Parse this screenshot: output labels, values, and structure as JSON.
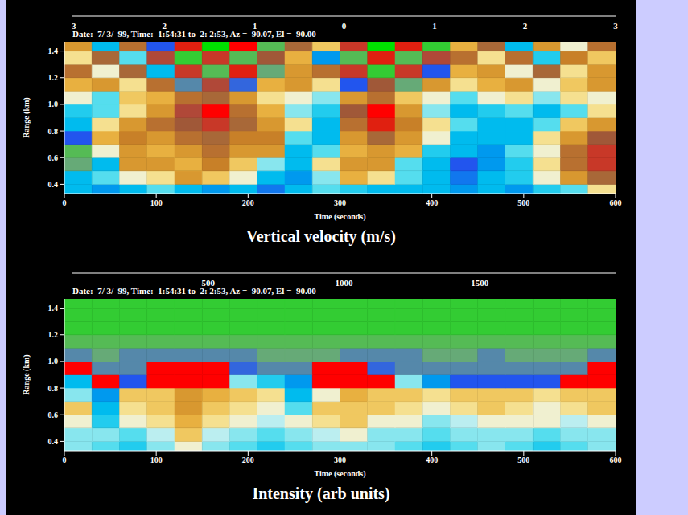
{
  "chart_data": [
    {
      "type": "heatmap",
      "title": "Vertical velocity (m/s)",
      "header": "Date:  7/ 3/  99, Time:  1:54:31 to  2: 2:53, Az =  90.07, El =  90.00",
      "x_label": "Time (seconds)",
      "y_label": "Range (km)",
      "xlim": [
        0,
        600
      ],
      "xticks": [
        0,
        100,
        200,
        300,
        400,
        500,
        600
      ],
      "ylim": [
        0.33,
        1.47
      ],
      "yticks": [
        0.4,
        0.6,
        0.8,
        {
          "value": 1,
          "label": "1.0"
        },
        1.2,
        1.4
      ],
      "x": [
        0,
        30,
        60,
        90,
        120,
        150,
        180,
        210,
        240,
        270,
        300,
        330,
        360,
        390,
        420,
        450,
        480,
        510,
        540,
        570
      ],
      "y": [
        0.3,
        0.4,
        0.5,
        0.6,
        0.7,
        0.8,
        0.9,
        1.0,
        1.1,
        1.2,
        1.3,
        1.4
      ],
      "cells": [
        [
          -1,
          -1.2,
          -0.8,
          -0.5,
          -1,
          -1.2,
          -1,
          -1.3,
          -0.8,
          -0.5,
          -0.6,
          -1,
          -1,
          -0.8,
          -1.2,
          -1,
          -1.1,
          -0.7,
          -0.5,
          0.5
        ],
        [
          -1,
          -0.5,
          0.3,
          0.5,
          1.0,
          0.6,
          0.3,
          -0.8,
          -1.2,
          -0.3,
          0.8,
          0.5,
          -0.5,
          -1.0,
          -1.3,
          -0.8,
          -0.6,
          0.3,
          1.0,
          1.8
        ],
        [
          -2.2,
          -0.8,
          1.0,
          1.2,
          0.8,
          1.4,
          0.6,
          -0.3,
          -1.0,
          0.5,
          1.2,
          1.0,
          -0.4,
          -1.0,
          -1.5,
          -1.2,
          -0.7,
          0.4,
          1.5,
          2.4
        ],
        [
          -2.5,
          0.2,
          1.2,
          0.8,
          1.2,
          1.5,
          1.2,
          1.0,
          -0.8,
          -0.5,
          0.8,
          1.2,
          0.8,
          -0.6,
          -1.0,
          -1.2,
          -0.5,
          0.2,
          1.6,
          2.5
        ],
        [
          -1.5,
          0.8,
          1.4,
          1.2,
          1.5,
          1.8,
          1.4,
          1.3,
          -0.5,
          -1.0,
          1.0,
          1.8,
          1.2,
          0.2,
          -0.8,
          -1.0,
          -0.8,
          0.5,
          1.2,
          2.0
        ],
        [
          -0.8,
          0.5,
          1.0,
          1.5,
          2.0,
          2.5,
          1.8,
          1.2,
          0.4,
          -0.8,
          1.5,
          2.6,
          1.4,
          0.5,
          -0.5,
          -0.8,
          -1.0,
          -0.5,
          0.6,
          1.0
        ],
        [
          -0.6,
          -0.4,
          0.5,
          1.2,
          2.2,
          2.8,
          1.6,
          0.8,
          -0.2,
          -0.6,
          2.0,
          2.8,
          1.2,
          -0.3,
          -0.8,
          -0.6,
          -0.4,
          -0.8,
          -0.5,
          0.4
        ],
        [
          0.3,
          -0.5,
          0.6,
          0.8,
          1.5,
          1.8,
          1.0,
          0.5,
          0.2,
          -0.3,
          1.2,
          1.6,
          0.6,
          0.3,
          -0.5,
          0.2,
          0.4,
          -0.2,
          0.5,
          0.3
        ],
        [
          0.8,
          1.2,
          0.5,
          1.5,
          -2.0,
          2.2,
          -1.8,
          0.8,
          1.0,
          0.5,
          -1.5,
          2.0,
          -2.2,
          1.0,
          0.5,
          0.8,
          1.2,
          0.3,
          0.6,
          1.0
        ],
        [
          1.5,
          0.2,
          1.8,
          -1.0,
          2.5,
          -2.5,
          2.6,
          -2.2,
          1.0,
          1.5,
          2.4,
          -2.6,
          2.5,
          -1.5,
          0.8,
          1.2,
          0.2,
          1.8,
          0.5,
          1.2
        ],
        [
          0.5,
          1.8,
          -0.5,
          2.2,
          -2.6,
          2.4,
          -2.5,
          2.0,
          0.8,
          -1.2,
          -2.4,
          2.6,
          -2.5,
          2.2,
          1.5,
          0.4,
          1.6,
          -0.6,
          1.4,
          0.6
        ],
        [
          1.2,
          -0.8,
          1.5,
          -1.5,
          2.6,
          -2.8,
          2.8,
          -2.4,
          1.8,
          0.6,
          2.5,
          -2.8,
          2.6,
          -2.6,
          0.9,
          1.8,
          -0.8,
          1.2,
          0.2,
          1.5
        ]
      ],
      "colorbar": {
        "range": [
          -3,
          3
        ],
        "ticks": [
          -3,
          -2,
          -1,
          0,
          1,
          2,
          3
        ],
        "colors": [
          "#00e000",
          "#33cc33",
          "#55bb55",
          "#66aa77",
          "#5588aa",
          "#3366dd",
          "#2255ee",
          "#1177ee",
          "#0099ee",
          "#00bbee",
          "#22ccee",
          "#55ddee",
          "#88e6ee",
          "#bbeef0",
          "#f0f0d0",
          "#f5e090",
          "#f0c860",
          "#e8b040",
          "#d89830",
          "#c88028",
          "#b87030",
          "#a86838",
          "#a05838",
          "#b04838",
          "#c83828",
          "#e02010",
          "#ff0000"
        ]
      }
    },
    {
      "type": "heatmap",
      "title": "Intensity (arb units)",
      "header": "Date:  7/ 3/  99, Time:  1:54:31 to  2: 2:53, Az =  90.07, El =  90.00",
      "x_label": "Time (seconds)",
      "y_label": "Range (km)",
      "xlim": [
        0,
        600
      ],
      "xticks": [
        0,
        100,
        200,
        300,
        400,
        500,
        600
      ],
      "ylim": [
        0.33,
        1.47
      ],
      "yticks": [
        0.4,
        0.6,
        0.8,
        {
          "value": 1,
          "label": "1.0"
        },
        1.2,
        1.4
      ],
      "x": [
        0,
        30,
        60,
        90,
        120,
        150,
        180,
        210,
        240,
        270,
        300,
        330,
        360,
        390,
        420,
        450,
        480,
        510,
        540,
        570
      ],
      "y": [
        0.3,
        0.4,
        0.5,
        0.6,
        0.7,
        0.8,
        0.9,
        1.0,
        1.1,
        1.2,
        1.3,
        1.4
      ],
      "cells": [
        [
          900,
          850,
          800,
          900,
          1100,
          900,
          850,
          800,
          850,
          900,
          950,
          900,
          850,
          800,
          850,
          900,
          850,
          800,
          850,
          900
        ],
        [
          950,
          900,
          850,
          1000,
          1200,
          1000,
          900,
          850,
          950,
          1000,
          1100,
          950,
          900,
          850,
          900,
          950,
          900,
          850,
          900,
          950
        ],
        [
          1100,
          800,
          1050,
          1150,
          1300,
          1150,
          1050,
          1000,
          1100,
          1150,
          1200,
          1100,
          1050,
          950,
          1000,
          1050,
          1100,
          1050,
          1000,
          1100
        ],
        [
          1200,
          700,
          1150,
          1200,
          1350,
          1250,
          1150,
          1100,
          850,
          1200,
          1250,
          1200,
          1150,
          1100,
          1150,
          1200,
          1150,
          1100,
          1150,
          1200
        ],
        [
          900,
          650,
          1200,
          1250,
          1400,
          1300,
          1200,
          1150,
          700,
          1100,
          1300,
          1250,
          1200,
          1150,
          1200,
          1250,
          1200,
          1150,
          1200,
          1250
        ],
        [
          700,
          1950,
          500,
          1950,
          1950,
          1950,
          900,
          800,
          600,
          1950,
          1950,
          1950,
          900,
          600,
          500,
          450,
          450,
          500,
          1950,
          1950
        ],
        [
          1950,
          350,
          350,
          1950,
          1950,
          1950,
          400,
          350,
          350,
          1950,
          1950,
          400,
          350,
          350,
          350,
          350,
          350,
          350,
          350,
          1950
        ],
        [
          350,
          250,
          300,
          300,
          300,
          300,
          300,
          250,
          250,
          250,
          300,
          300,
          300,
          250,
          250,
          300,
          250,
          250,
          250,
          300
        ],
        [
          200,
          150,
          200,
          200,
          200,
          200,
          200,
          150,
          150,
          200,
          200,
          200,
          150,
          150,
          150,
          200,
          150,
          150,
          150,
          150
        ],
        [
          120,
          110,
          130,
          120,
          120,
          130,
          120,
          110,
          120,
          120,
          130,
          120,
          110,
          120,
          120,
          130,
          120,
          110,
          120,
          120
        ],
        [
          110,
          120,
          110,
          120,
          110,
          120,
          110,
          120,
          110,
          120,
          110,
          120,
          110,
          120,
          110,
          120,
          110,
          120,
          110,
          120
        ],
        [
          100,
          110,
          100,
          110,
          100,
          110,
          100,
          110,
          100,
          110,
          100,
          110,
          100,
          110,
          100,
          110,
          100,
          110,
          100,
          110
        ]
      ],
      "colorbar": {
        "range": [
          0,
          2000
        ],
        "ticks": [
          500,
          1000,
          1500
        ],
        "colors": [
          "#00e000",
          "#33cc33",
          "#55bb55",
          "#66aa77",
          "#5588aa",
          "#3366dd",
          "#2255ee",
          "#1177ee",
          "#0099ee",
          "#00bbee",
          "#22ccee",
          "#55ddee",
          "#88e6ee",
          "#bbeef0",
          "#f0f0d0",
          "#f5e090",
          "#f0c860",
          "#e8b040",
          "#d89830",
          "#c88028",
          "#b87030",
          "#a86838",
          "#a05838",
          "#b04838",
          "#c83828",
          "#e02010",
          "#ff0000"
        ]
      }
    }
  ]
}
